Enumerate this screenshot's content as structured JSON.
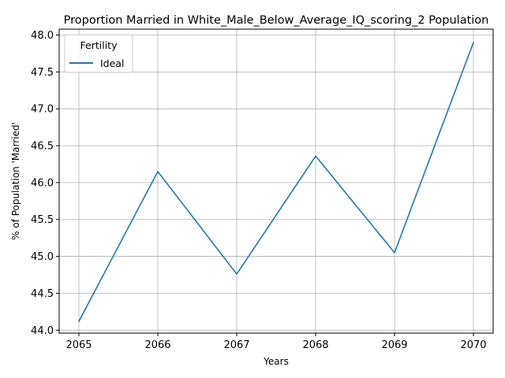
{
  "chart_data": {
    "type": "line",
    "title": "Proportion Married in White_Male_Below_Average_IQ_scoring_2 Population",
    "xlabel": "Years",
    "ylabel": "% of Population 'Married'",
    "x": [
      2065,
      2066,
      2067,
      2068,
      2069,
      2070
    ],
    "xticks": [
      "2065",
      "2066",
      "2067",
      "2068",
      "2069",
      "2070"
    ],
    "yticks": [
      "44.0",
      "44.5",
      "45.0",
      "45.5",
      "46.0",
      "46.5",
      "47.0",
      "47.5",
      "48.0"
    ],
    "xlim": [
      2064.75,
      2070.25
    ],
    "ylim": [
      43.96,
      48.08
    ],
    "grid": true,
    "legend": {
      "title": "Fertility",
      "placement": "upper-left"
    },
    "series": [
      {
        "name": "Ideal",
        "color": "#1f77b4",
        "values": [
          44.12,
          46.15,
          44.76,
          46.36,
          45.05,
          47.9
        ]
      }
    ]
  }
}
